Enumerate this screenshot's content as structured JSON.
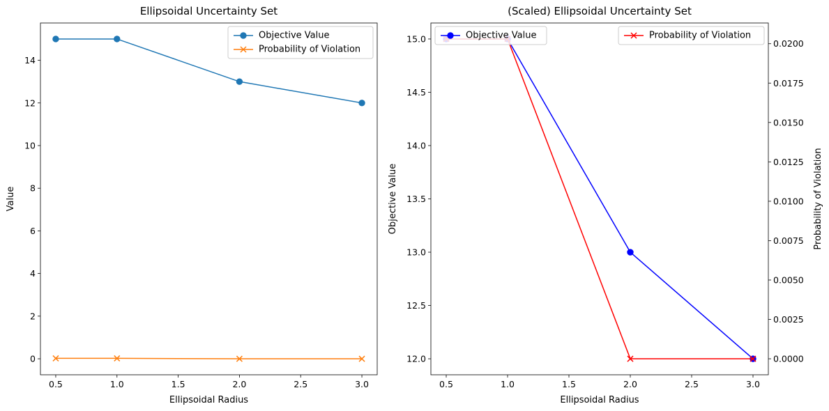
{
  "chart_data": [
    {
      "type": "line",
      "title": "Ellipsoidal Uncertainty Set",
      "xlabel": "Ellipsoidal Radius",
      "ylabel": "Value",
      "x": [
        0.5,
        1.0,
        2.0,
        3.0
      ],
      "xlim": [
        0.375,
        3.125
      ],
      "ylim": [
        -0.75,
        15.75
      ],
      "xticks": [
        0.5,
        1.0,
        1.5,
        2.0,
        2.5,
        3.0
      ],
      "xtick_labels": [
        "0.5",
        "1.0",
        "1.5",
        "2.0",
        "2.5",
        "3.0"
      ],
      "yticks": [
        0,
        2,
        4,
        6,
        8,
        10,
        12,
        14
      ],
      "ytick_labels": [
        "0",
        "2",
        "4",
        "6",
        "8",
        "10",
        "12",
        "14"
      ],
      "grid": false,
      "legend_position": "top-right",
      "series": [
        {
          "name": "Objective Value",
          "values": [
            15,
            15,
            13,
            12
          ],
          "color": "#1f77b4",
          "marker": "circle"
        },
        {
          "name": "Probability of Violation",
          "values": [
            0.0203,
            0.0203,
            0.0,
            0.0
          ],
          "color": "#ff7f0e",
          "marker": "x"
        }
      ]
    },
    {
      "type": "line",
      "title": "(Scaled) Ellipsoidal Uncertainty Set",
      "xlabel": "Ellipsoidal Radius",
      "ylabel": "Objective Value",
      "ylabel_color": "#0000ff",
      "y2label": "Probability of Violation",
      "y2label_color": "#ff0000",
      "x": [
        0.5,
        1.0,
        2.0,
        3.0
      ],
      "xlim": [
        0.375,
        3.125
      ],
      "ylim": [
        11.85,
        15.15
      ],
      "y2lim": [
        -0.001015,
        0.021315
      ],
      "xticks": [
        0.5,
        1.0,
        1.5,
        2.0,
        2.5,
        3.0
      ],
      "xtick_labels": [
        "0.5",
        "1.0",
        "1.5",
        "2.0",
        "2.5",
        "3.0"
      ],
      "yticks": [
        12.0,
        12.5,
        13.0,
        13.5,
        14.0,
        14.5,
        15.0
      ],
      "ytick_labels": [
        "12.0",
        "12.5",
        "13.0",
        "13.5",
        "14.0",
        "14.5",
        "15.0"
      ],
      "y2ticks": [
        0.0,
        0.0025,
        0.005,
        0.0075,
        0.01,
        0.0125,
        0.015,
        0.0175,
        0.02
      ],
      "y2tick_labels": [
        "0.0000",
        "0.0025",
        "0.0050",
        "0.0075",
        "0.0100",
        "0.0125",
        "0.0150",
        "0.0175",
        "0.0200"
      ],
      "grid": false,
      "legend_position": "top-left and top-right",
      "series": [
        {
          "name": "Objective Value",
          "axis": "left",
          "values": [
            15,
            15,
            13,
            12
          ],
          "color": "#0000ff",
          "marker": "circle"
        },
        {
          "name": "Probability of Violation",
          "axis": "right",
          "values": [
            0.0203,
            0.0203,
            0.0,
            0.0
          ],
          "color": "#ff0000",
          "marker": "x"
        }
      ]
    }
  ]
}
